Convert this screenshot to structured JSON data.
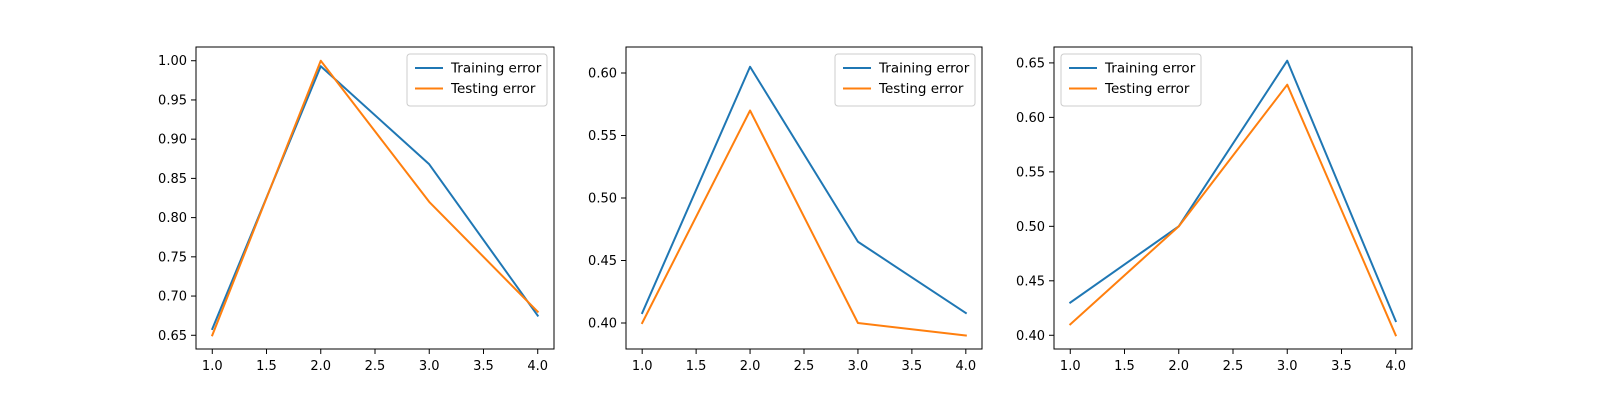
{
  "colors": {
    "training": "#1f77b4",
    "testing": "#ff7f0e",
    "axes": "#000000",
    "legend_border": "#cccccc",
    "background": "#ffffff"
  },
  "chart_data": [
    {
      "type": "line",
      "title": "",
      "xlabel": "",
      "ylabel": "",
      "xlim": [
        0.85,
        4.15
      ],
      "ylim": [
        0.6325,
        1.0175
      ],
      "xticks": [
        1.0,
        1.5,
        2.0,
        2.5,
        3.0,
        3.5,
        4.0
      ],
      "xtick_labels": [
        "1.0",
        "1.5",
        "2.0",
        "2.5",
        "3.0",
        "3.5",
        "4.0"
      ],
      "yticks": [
        0.65,
        0.7,
        0.75,
        0.8,
        0.85,
        0.9,
        0.95,
        1.0
      ],
      "ytick_labels": [
        "0.65",
        "0.70",
        "0.75",
        "0.80",
        "0.85",
        "0.90",
        "0.95",
        "1.00"
      ],
      "legend_position": "top-right",
      "grid": false,
      "x": [
        1,
        2,
        3,
        4
      ],
      "series": [
        {
          "name": "Training error",
          "color": "#1f77b4",
          "values": [
            0.658,
            0.993,
            0.868,
            0.675
          ]
        },
        {
          "name": "Testing error",
          "color": "#ff7f0e",
          "values": [
            0.65,
            1.0,
            0.82,
            0.68
          ]
        }
      ]
    },
    {
      "type": "line",
      "title": "",
      "xlabel": "",
      "ylabel": "",
      "xlim": [
        0.85,
        4.15
      ],
      "ylim": [
        0.3792,
        0.6208
      ],
      "xticks": [
        1.0,
        1.5,
        2.0,
        2.5,
        3.0,
        3.5,
        4.0
      ],
      "xtick_labels": [
        "1.0",
        "1.5",
        "2.0",
        "2.5",
        "3.0",
        "3.5",
        "4.0"
      ],
      "yticks": [
        0.4,
        0.45,
        0.5,
        0.55,
        0.6
      ],
      "ytick_labels": [
        "0.40",
        "0.45",
        "0.50",
        "0.55",
        "0.60"
      ],
      "legend_position": "top-right",
      "grid": false,
      "x": [
        1,
        2,
        3,
        4
      ],
      "series": [
        {
          "name": "Training error",
          "color": "#1f77b4",
          "values": [
            0.408,
            0.605,
            0.465,
            0.408
          ]
        },
        {
          "name": "Testing error",
          "color": "#ff7f0e",
          "values": [
            0.4,
            0.57,
            0.4,
            0.39
          ]
        }
      ]
    },
    {
      "type": "line",
      "title": "",
      "xlabel": "",
      "ylabel": "",
      "xlim": [
        0.85,
        4.15
      ],
      "ylim": [
        0.3874,
        0.6646
      ],
      "xticks": [
        1.0,
        1.5,
        2.0,
        2.5,
        3.0,
        3.5,
        4.0
      ],
      "xtick_labels": [
        "1.0",
        "1.5",
        "2.0",
        "2.5",
        "3.0",
        "3.5",
        "4.0"
      ],
      "yticks": [
        0.4,
        0.45,
        0.5,
        0.55,
        0.6,
        0.65
      ],
      "ytick_labels": [
        "0.40",
        "0.45",
        "0.50",
        "0.55",
        "0.60",
        "0.65"
      ],
      "legend_position": "top-left",
      "grid": false,
      "x": [
        1,
        2,
        3,
        4
      ],
      "series": [
        {
          "name": "Training error",
          "color": "#1f77b4",
          "values": [
            0.43,
            0.5,
            0.652,
            0.413
          ]
        },
        {
          "name": "Testing error",
          "color": "#ff7f0e",
          "values": [
            0.41,
            0.5,
            0.63,
            0.4
          ]
        }
      ]
    }
  ]
}
